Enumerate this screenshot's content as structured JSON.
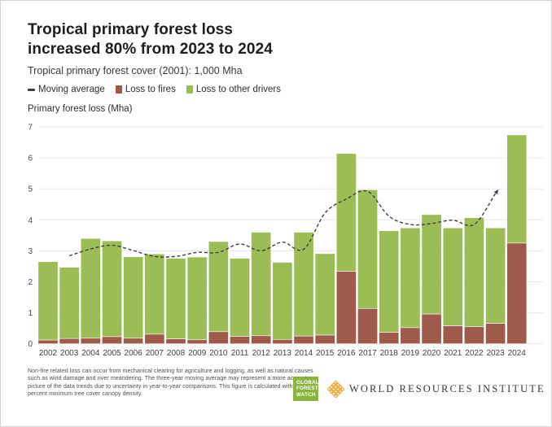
{
  "header": {
    "title_line1": "Tropical primary forest loss",
    "title_line2": "increased 80% from 2023 to 2024",
    "subtitle": "Tropical primary forest cover (2001): 1,000 Mha"
  },
  "legend": {
    "items": [
      {
        "label": "Moving average",
        "swatch": "dash-icon",
        "color": "#3f3f3f"
      },
      {
        "label": "Loss to fires",
        "swatch": "square-icon",
        "color": "#9e5b4b"
      },
      {
        "label": "Loss to other drivers",
        "swatch": "square-icon",
        "color": "#9cbd55"
      }
    ]
  },
  "chart_data": {
    "type": "bar",
    "stacked": true,
    "ylabel": "Primary forest loss (Mha)",
    "ylim": [
      0,
      7
    ],
    "yticks": [
      0,
      1,
      2,
      3,
      4,
      5,
      6,
      7
    ],
    "grid": true,
    "legend_position": "top",
    "categories": [
      "2002",
      "2003",
      "2004",
      "2005",
      "2006",
      "2007",
      "2008",
      "2009",
      "2010",
      "2011",
      "2012",
      "2013",
      "2014",
      "2015",
      "2016",
      "2017",
      "2018",
      "2019",
      "2020",
      "2021",
      "2022",
      "2023",
      "2024"
    ],
    "series": [
      {
        "name": "Loss to fires",
        "color": "#9e5b4b",
        "values": [
          0.12,
          0.17,
          0.18,
          0.23,
          0.18,
          0.31,
          0.16,
          0.13,
          0.39,
          0.24,
          0.26,
          0.14,
          0.25,
          0.28,
          2.34,
          1.14,
          0.37,
          0.52,
          0.96,
          0.58,
          0.55,
          0.66,
          3.25
        ]
      },
      {
        "name": "Loss to other drivers",
        "color": "#9cbd55",
        "values": [
          2.53,
          2.3,
          3.22,
          3.09,
          2.63,
          2.59,
          2.6,
          2.67,
          2.91,
          2.52,
          3.34,
          2.49,
          3.35,
          2.63,
          3.8,
          3.83,
          3.28,
          3.22,
          3.21,
          3.16,
          3.52,
          3.08,
          3.49
        ]
      }
    ],
    "moving_average": {
      "name": "Moving average",
      "color": "#3f3f3f",
      "style": "dashed-line-with-arrow",
      "x": [
        "2003",
        "2004",
        "2005",
        "2006",
        "2007",
        "2008",
        "2009",
        "2010",
        "2011",
        "2012",
        "2013",
        "2014",
        "2015",
        "2016",
        "2017",
        "2018",
        "2019",
        "2020",
        "2021",
        "2022",
        "2023"
      ],
      "values": [
        2.84,
        3.06,
        3.18,
        3.01,
        2.82,
        2.82,
        2.95,
        2.95,
        3.22,
        3.0,
        3.28,
        3.05,
        4.22,
        4.67,
        4.92,
        4.12,
        3.85,
        3.88,
        3.99,
        3.85,
        4.85
      ]
    },
    "colors": {
      "grid": "#e7e7e7",
      "tick_text": "#4a4a4a"
    }
  },
  "footer": {
    "note": "Non-fire related loss can occur from mechanical clearing for agriculture and logging, as well as natural causes such as wind damage and river meandering. The three-year moving average may represent a more accurate picture of the data trends due to uncertainty in year-to-year comparisons. This figure is calculated with a 30 percent minimum tree cover canopy density.",
    "gfw_logo": {
      "lines": [
        "GLOBAL",
        "FOREST",
        "WATCH"
      ],
      "color": "#8ab43d"
    },
    "wri_logo": {
      "text": "WORLD RESOURCES INSTITUTE",
      "icon_color": "#e8a93e"
    }
  }
}
